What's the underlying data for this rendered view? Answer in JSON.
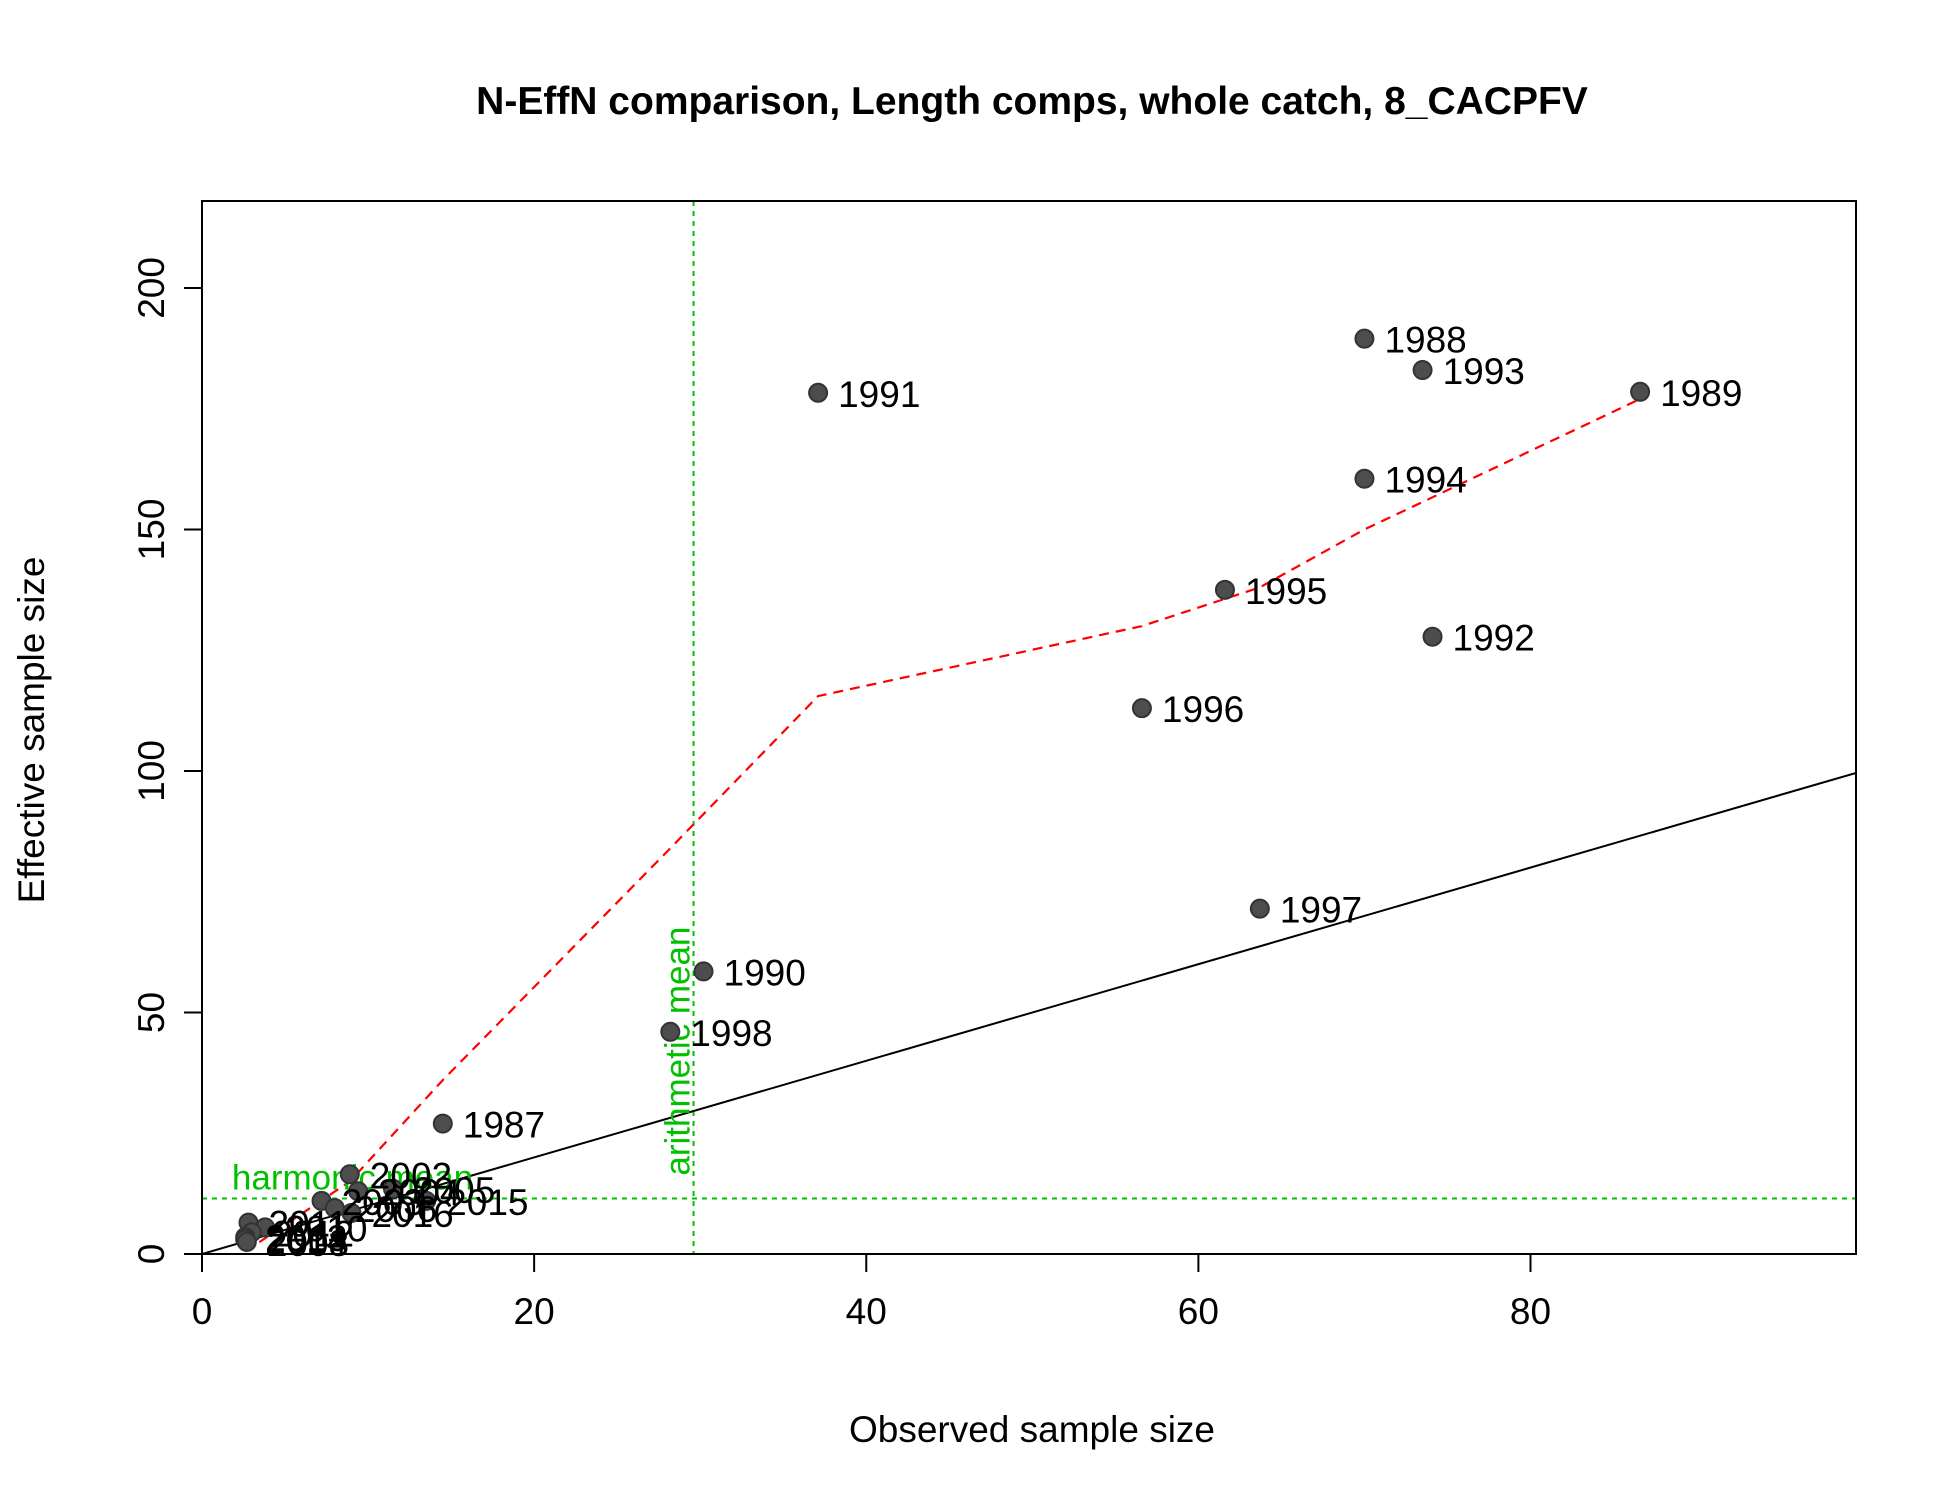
{
  "chart_data": {
    "type": "scatter",
    "title": "N-EffN comparison, Length comps, whole catch, 8_CACPFV",
    "xlabel": "Observed sample size",
    "ylabel": "Effective sample size",
    "xlim": [
      0,
      99.6
    ],
    "ylim": [
      0,
      218
    ],
    "xticks": [
      0,
      20,
      40,
      60,
      80
    ],
    "yticks": [
      0,
      50,
      100,
      150,
      200
    ],
    "grid": false,
    "legend": "none",
    "points": [
      {
        "label": "1987",
        "x": 14.5,
        "y": 27
      },
      {
        "label": "1988",
        "x": 70.0,
        "y": 189.5
      },
      {
        "label": "1989",
        "x": 86.6,
        "y": 178.5
      },
      {
        "label": "1990",
        "x": 30.2,
        "y": 58.5
      },
      {
        "label": "1991",
        "x": 37.1,
        "y": 178.3
      },
      {
        "label": "1992",
        "x": 74.1,
        "y": 127.8
      },
      {
        "label": "1993",
        "x": 73.5,
        "y": 183.0
      },
      {
        "label": "1994",
        "x": 70.0,
        "y": 160.5
      },
      {
        "label": "1995",
        "x": 61.6,
        "y": 137.5
      },
      {
        "label": "1996",
        "x": 56.6,
        "y": 113.0
      },
      {
        "label": "1997",
        "x": 63.7,
        "y": 71.5
      },
      {
        "label": "1998",
        "x": 28.2,
        "y": 46.0
      },
      {
        "label": "2002",
        "x": 8.9,
        "y": 16.5
      },
      {
        "label": "2004",
        "x": 9.4,
        "y": 13.0
      },
      {
        "label": "2005",
        "x": 11.5,
        "y": 13.5
      },
      {
        "label": "2015",
        "x": 13.5,
        "y": 11.0
      },
      {
        "label": "2016",
        "x": 9.0,
        "y": 8.5
      },
      {
        "label": "2003",
        "x": 7.2,
        "y": 11.0
      },
      {
        "label": "2006",
        "x": 8.0,
        "y": 9.5
      },
      {
        "label": "2010",
        "x": 3.8,
        "y": 5.5
      },
      {
        "label": "2011",
        "x": 2.8,
        "y": 6.5
      },
      {
        "label": "2012",
        "x": 3.0,
        "y": 4.5
      },
      {
        "label": "2013",
        "x": 2.6,
        "y": 3.5
      },
      {
        "label": "2014",
        "x": 2.6,
        "y": 3.0
      },
      {
        "label": "2008",
        "x": 2.7,
        "y": 2.5
      }
    ],
    "trend_line": {
      "style": "red dashed",
      "x": [
        2.6,
        8.9,
        14.5,
        28.2,
        37.1,
        56.6,
        63.7,
        70.0,
        86.6
      ],
      "y": [
        0.5,
        15,
        36,
        84,
        115.5,
        130,
        138,
        150,
        177
      ]
    },
    "identity_line": {
      "style": "black solid",
      "x": [
        0,
        99.6
      ],
      "y": [
        0,
        99.6
      ]
    },
    "reference_lines": [
      {
        "label": "arithmetic mean",
        "orientation": "vertical",
        "x": 29.6,
        "color": "#00c000"
      },
      {
        "label": "harmonic mean",
        "orientation": "horizontal",
        "y": 11.5,
        "color": "#00c000"
      }
    ]
  }
}
